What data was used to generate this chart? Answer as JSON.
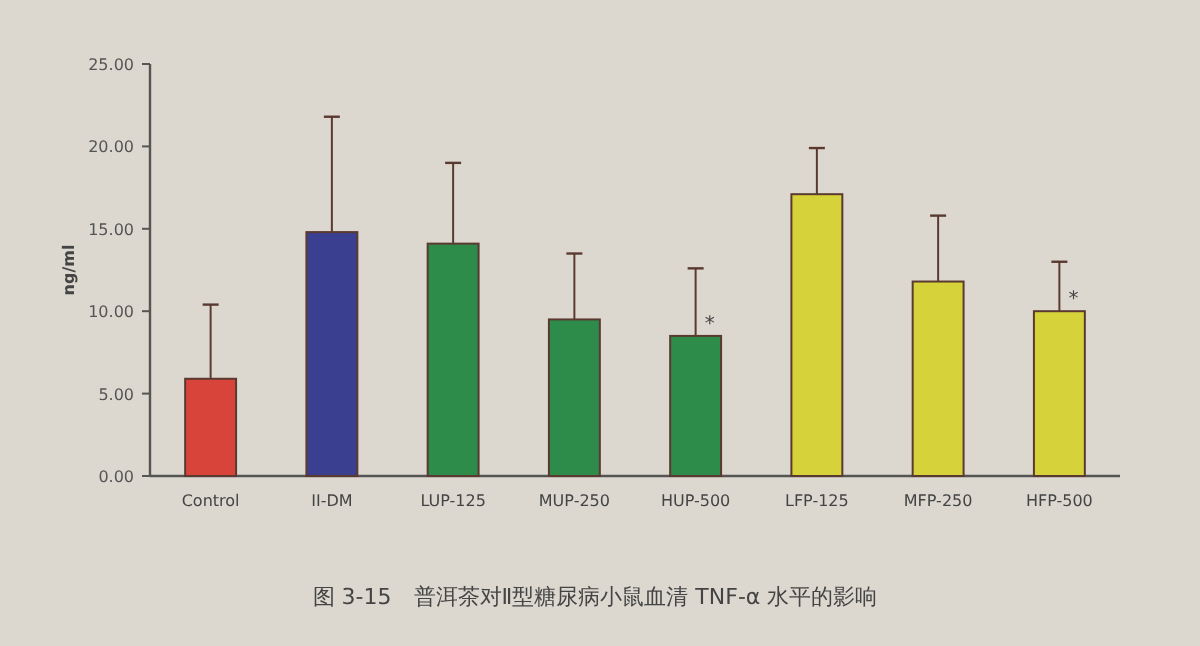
{
  "chart_data": {
    "type": "bar",
    "ylabel": "ng/ml",
    "categories": [
      "Control",
      "II-DM",
      "LUP-125",
      "MUP-250",
      "HUP-500",
      "LFP-125",
      "MFP-250",
      "HFP-500"
    ],
    "values": [
      5.9,
      14.8,
      14.1,
      9.5,
      8.5,
      17.1,
      11.8,
      10.0
    ],
    "colors": [
      "#d9443a",
      "#3b3f8f",
      "#2e8c4a",
      "#2e8c4a",
      "#2e8c4a",
      "#d6d23a",
      "#d6d23a",
      "#d6d23a"
    ],
    "errors": [
      4.5,
      7.0,
      4.9,
      4.0,
      4.1,
      2.8,
      4.0,
      3.0
    ],
    "ylim": [
      0,
      25
    ],
    "yticks": [
      {
        "value": 0,
        "label": "0.00"
      },
      {
        "value": 5,
        "label": "5.00"
      },
      {
        "value": 10,
        "label": "10.00"
      },
      {
        "value": 15,
        "label": "15.00"
      },
      {
        "value": 20,
        "label": "20.00"
      },
      {
        "value": 25,
        "label": "25.00"
      }
    ],
    "value_labels": [
      null,
      null,
      null,
      null,
      "*",
      null,
      null,
      "*"
    ],
    "annotations": [
      "图 3-15　普洱茶对Ⅱ型糖尿病小鼠血清 TNF-α 水平的影响"
    ]
  }
}
